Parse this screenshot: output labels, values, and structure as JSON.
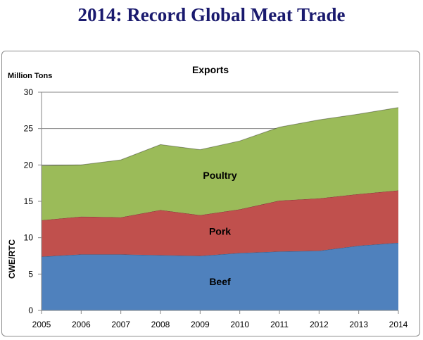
{
  "page": {
    "title": "2014:  Record Global Meat Trade"
  },
  "chart_data": {
    "type": "area",
    "stacked": true,
    "title": "Exports",
    "unit_label": "Million Tons",
    "ylabel": "CWE/RTC",
    "xlabel": "",
    "x": [
      2005,
      2006,
      2007,
      2008,
      2009,
      2010,
      2011,
      2012,
      2013,
      2014
    ],
    "ylim": [
      0,
      30
    ],
    "yticks": [
      0,
      5,
      10,
      15,
      20,
      25,
      30
    ],
    "grid": true,
    "legend": "none",
    "series": [
      {
        "name": "Beef",
        "color": "#4f81bd",
        "values": [
          7.4,
          7.7,
          7.7,
          7.6,
          7.5,
          7.9,
          8.1,
          8.2,
          8.9,
          9.3
        ]
      },
      {
        "name": "Pork",
        "color": "#c0504d",
        "values": [
          5.0,
          5.2,
          5.1,
          6.2,
          5.6,
          6.0,
          7.0,
          7.2,
          7.1,
          7.2
        ]
      },
      {
        "name": "Poultry",
        "color": "#9bbb59",
        "values": [
          7.5,
          7.1,
          7.9,
          9.0,
          9.0,
          9.4,
          10.1,
          10.8,
          11.0,
          11.4
        ]
      }
    ]
  }
}
